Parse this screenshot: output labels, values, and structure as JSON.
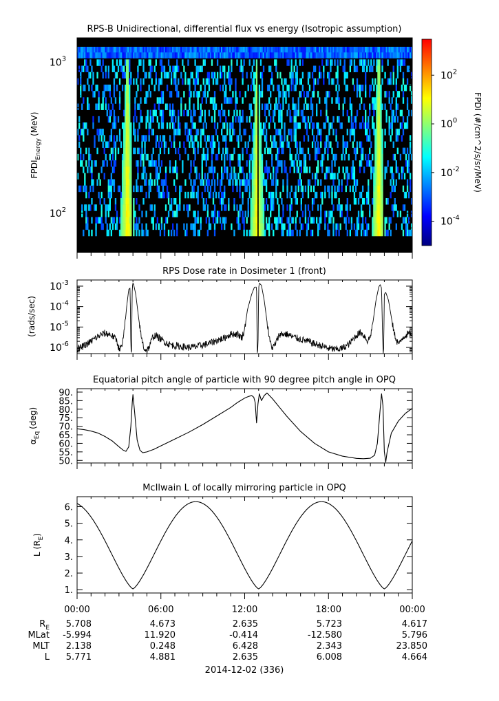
{
  "chart_data": [
    {
      "type": "heatmap",
      "title": "RPS-B  Unidirectional, differential flux vs energy (Isotropic assumption)",
      "ylabel": "FPDI_Energy (MeV)",
      "ylabel_main": "FPDI",
      "ylabel_sub": "Energy",
      "ylabel_unit": "(MeV)",
      "y_scale": "log",
      "ylim": [
        55,
        1450
      ],
      "y_ticks": [
        {
          "value": 100,
          "base": "10",
          "exp": "2"
        },
        {
          "value": 1000,
          "base": "10",
          "exp": "3"
        }
      ],
      "energy_bins": 30,
      "time_bins": 240,
      "x_hours": [
        0,
        24
      ],
      "hot_bands": [
        {
          "center": 3.6,
          "halfwidth_low": 0.55,
          "halfwidth_high": 0.1,
          "gap": 3.95
        },
        {
          "center": 12.9,
          "halfwidth_low": 0.55,
          "halfwidth_high": 0.1,
          "gap": 12.95
        },
        {
          "center": 21.6,
          "halfwidth_low": 0.5,
          "halfwidth_high": 0.1,
          "gap": 21.95
        }
      ],
      "colorbar": {
        "label": "FPDI (#/cm^2/s/sr/MeV)",
        "scale": "log",
        "range": [
          1e-05,
          3000
        ],
        "colors": [
          "#00007f",
          "#0000ff",
          "#007fff",
          "#00ffff",
          "#7fff7f",
          "#ffff00",
          "#ff7f00",
          "#ff0000"
        ],
        "ticks": [
          {
            "value": 0.0001,
            "base": "10",
            "exp": "-4"
          },
          {
            "value": 0.01,
            "base": "10",
            "exp": "-2"
          },
          {
            "value": 1,
            "base": "10",
            "exp": "0"
          },
          {
            "value": 100,
            "base": "10",
            "exp": "2"
          }
        ]
      }
    },
    {
      "type": "line",
      "title": "RPS  Dose rate in Dosimeter 1 (front)",
      "ylabel": "(rads/sec)",
      "y_scale": "log",
      "ylim": [
        5e-07,
        0.002
      ],
      "y_ticks": [
        {
          "value": 1e-06,
          "base": "10",
          "exp": "-6"
        },
        {
          "value": 1e-05,
          "base": "10",
          "exp": "-5"
        },
        {
          "value": 0.0001,
          "base": "10",
          "exp": "-4"
        },
        {
          "value": 0.001,
          "base": "10",
          "exp": "-3"
        }
      ],
      "x": [
        0,
        0.4,
        0.8,
        1.2,
        1.6,
        2.0,
        2.4,
        2.8,
        3.0,
        3.2,
        3.4,
        3.55,
        3.7,
        3.8,
        3.85,
        3.9,
        3.95,
        4.0,
        4.05,
        4.2,
        4.4,
        4.6,
        4.8,
        5.0,
        5.2,
        5.4,
        5.6,
        6.0,
        6.5,
        7.0,
        7.5,
        8.0,
        8.5,
        9.0,
        9.5,
        10.0,
        10.5,
        11.0,
        11.5,
        11.8,
        12.0,
        12.2,
        12.5,
        12.7,
        12.85,
        12.9,
        12.95,
        13.0,
        13.05,
        13.2,
        13.4,
        13.6,
        13.8,
        14.0,
        14.2,
        14.5,
        15.0,
        15.5,
        16.0,
        16.5,
        17.0,
        17.5,
        18.0,
        18.5,
        19.0,
        19.5,
        20.0,
        20.3,
        20.6,
        20.8,
        21.0,
        21.2,
        21.4,
        21.6,
        21.7,
        21.8,
        21.9,
        21.95,
        22.0,
        22.1,
        22.3,
        22.5,
        22.7,
        22.9,
        23.1,
        23.3,
        23.6,
        24.0
      ],
      "values": [
        8e-07,
        1.1e-06,
        1.6e-06,
        2.5e-06,
        3.8e-06,
        5e-06,
        4.2e-06,
        2.5e-06,
        9e-07,
        1e-06,
        8e-06,
        0.0001,
        0.0007,
        0.0008,
        6e-07,
        6e-07,
        0.0009,
        0.0014,
        0.0012,
        0.0004,
        3e-05,
        3e-06,
        9e-07,
        7e-07,
        1.2e-06,
        3e-06,
        4e-06,
        2.5e-06,
        1.5e-06,
        1.2e-06,
        1.1e-06,
        1e-06,
        1.1e-06,
        1.3e-06,
        1.6e-06,
        2.2e-06,
        2.8e-06,
        4.5e-06,
        4.5e-06,
        3e-06,
        8e-06,
        7e-05,
        0.0004,
        0.0009,
        0.0009,
        6e-07,
        6e-07,
        0.0008,
        0.0014,
        0.0011,
        0.0002,
        1.8e-05,
        2e-06,
        9e-07,
        1.5e-06,
        4.5e-06,
        4.5e-06,
        3.2e-06,
        2.5e-06,
        2e-06,
        1.5e-06,
        1.2e-06,
        9e-07,
        8e-07,
        9e-07,
        1.5e-06,
        4e-06,
        5.5e-06,
        3.5e-06,
        2e-06,
        3.5e-06,
        2e-05,
        0.0002,
        0.0009,
        0.0012,
        0.0008,
        6e-07,
        6e-07,
        0.0004,
        0.0005,
        0.0002,
        3e-05,
        5e-06,
        2e-06,
        1.5e-06,
        3e-06,
        4.5e-06,
        4.5e-06
      ]
    },
    {
      "type": "line",
      "title": "Equatorial pitch angle of particle with 90 degree pitch angle in OPQ",
      "ylabel": "α_Eq (deg)",
      "ylabel_main": "α",
      "ylabel_sub": "Eq",
      "ylabel_unit": "(deg)",
      "ylim": [
        48.5,
        92
      ],
      "y_ticks": [
        50,
        55,
        60,
        65,
        70,
        75,
        80,
        85,
        90
      ],
      "y_tick_labels": [
        "50.",
        "55.",
        "60.",
        "65.",
        "70.",
        "75.",
        "80.",
        "85.",
        "90."
      ],
      "x": [
        0,
        0.5,
        1.0,
        1.5,
        2.0,
        2.5,
        3.0,
        3.3,
        3.5,
        3.7,
        3.85,
        3.95,
        4.0,
        4.1,
        4.3,
        4.5,
        4.7,
        5.0,
        5.5,
        6.0,
        7.0,
        8.0,
        9.0,
        10.0,
        11.0,
        11.5,
        12.0,
        12.3,
        12.5,
        12.65,
        12.75,
        12.85,
        12.95,
        13.05,
        13.2,
        13.4,
        13.6,
        14.0,
        14.5,
        15.0,
        16.0,
        17.0,
        18.0,
        19.0,
        20.0,
        20.5,
        21.0,
        21.3,
        21.5,
        21.7,
        21.8,
        21.9,
        22.0,
        22.1,
        22.2,
        22.5,
        23.0,
        23.5,
        24.0
      ],
      "values": [
        68.5,
        68.0,
        67.2,
        66.0,
        64.0,
        61.5,
        58.0,
        56.0,
        55.3,
        58.0,
        70.0,
        84.0,
        88.5,
        80.0,
        62.0,
        56.0,
        54.5,
        55.0,
        56.5,
        58.5,
        62.5,
        66.5,
        71.0,
        76.0,
        81.0,
        84.0,
        86.5,
        87.5,
        88.0,
        87.0,
        84.0,
        72.0,
        83.0,
        89.0,
        85.0,
        88.0,
        89.5,
        86.0,
        81.0,
        76.0,
        67.0,
        60.0,
        55.0,
        52.5,
        51.2,
        51.0,
        51.3,
        53.0,
        60.0,
        80.0,
        89.0,
        82.0,
        55.0,
        49.0,
        55.0,
        66.0,
        73.0,
        77.5,
        80.5
      ]
    },
    {
      "type": "line",
      "title": "McIlwain L of locally mirroring particle in OPQ",
      "ylabel": "L (R_E)",
      "ylabel_main": "L (R",
      "ylabel_sub": "E",
      "ylabel_unit": ")",
      "ylim": [
        0.8,
        6.6
      ],
      "y_ticks": [
        1,
        2,
        3,
        4,
        5,
        6
      ],
      "y_tick_labels": [
        "1.",
        "2.",
        "3.",
        "4.",
        "5.",
        "6."
      ],
      "orbit_period_hours": 9.0,
      "apogee_L": 6.3,
      "perigee_L": 1.05,
      "perigee_hours": [
        4.0,
        13.0,
        22.0
      ],
      "apogee_hours": [
        8.3,
        17.4
      ]
    }
  ],
  "x_axis": {
    "tick_labels": [
      "00:00",
      "06:00",
      "12:00",
      "18:00",
      "00:00"
    ],
    "tick_hours": [
      0,
      6,
      12,
      18,
      24
    ],
    "minor_step_hours": 1,
    "date_label": "2014-12-02 (336)"
  },
  "ephemeris": {
    "rows": [
      {
        "label": "R_E",
        "label_main": "R",
        "label_sub": "E",
        "values": [
          "5.708",
          "4.673",
          "2.635",
          "5.723",
          "4.617"
        ]
      },
      {
        "label": "MLat",
        "values": [
          "-5.994",
          "11.920",
          "-0.414",
          "-12.580",
          "5.796"
        ]
      },
      {
        "label": "MLT",
        "values": [
          "2.138",
          "0.248",
          "6.428",
          "2.343",
          "23.850"
        ]
      },
      {
        "label": "L",
        "values": [
          "5.771",
          "4.881",
          "2.635",
          "6.008",
          "4.664"
        ]
      }
    ]
  }
}
